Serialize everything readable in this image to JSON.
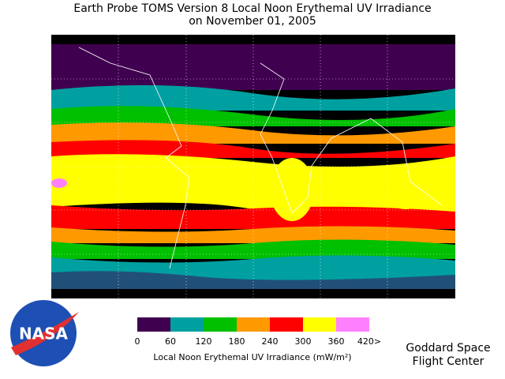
{
  "title": [
    "Earth Probe TOMS Version 8 Local Noon Erythemal UV Irradiance",
    "on November 01, 2005"
  ],
  "legend": {
    "bins": [
      0,
      60,
      120,
      180,
      240,
      300,
      360,
      {
        "value": 420,
        "label": "420>"
      }
    ],
    "colors": [
      "#400050",
      "#00a0a0",
      "#00c000",
      "#ff9900",
      "#ff0000",
      "#ffff00",
      "#ff80ff"
    ],
    "label": "Local Noon Erythemal UV Irradiance (mW/m²)"
  },
  "logo": "NASA",
  "credit": [
    "Goddard Space",
    "Flight Center"
  ]
}
